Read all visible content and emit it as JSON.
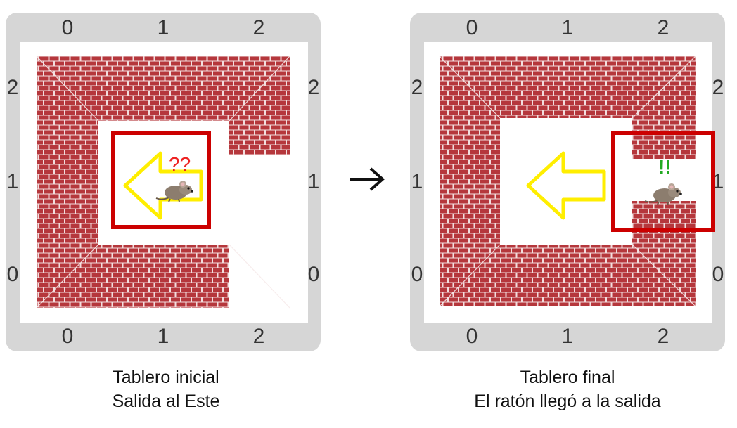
{
  "boards": [
    {
      "col_labels": [
        "0",
        "1",
        "2"
      ],
      "row_labels": [
        "2",
        "1",
        "0"
      ],
      "mouse_mark": "??",
      "caption": [
        "Tablero inicial",
        "Salida al Este"
      ]
    },
    {
      "col_labels": [
        "0",
        "1",
        "2"
      ],
      "row_labels": [
        "2",
        "1",
        "0"
      ],
      "mouse_mark": "!!",
      "caption": [
        "Tablero final",
        "El ratón llegó a la salida"
      ]
    }
  ],
  "colors": {
    "brick": "#b5373c",
    "mortar": "#f2dede",
    "highlight": "#cc0000",
    "arrow": "#ffee00",
    "question": "#ee2222",
    "exclaim": "#22aa22"
  },
  "icons": [
    "mouse-icon",
    "yellow-arrow-icon",
    "right-arrow-icon"
  ]
}
